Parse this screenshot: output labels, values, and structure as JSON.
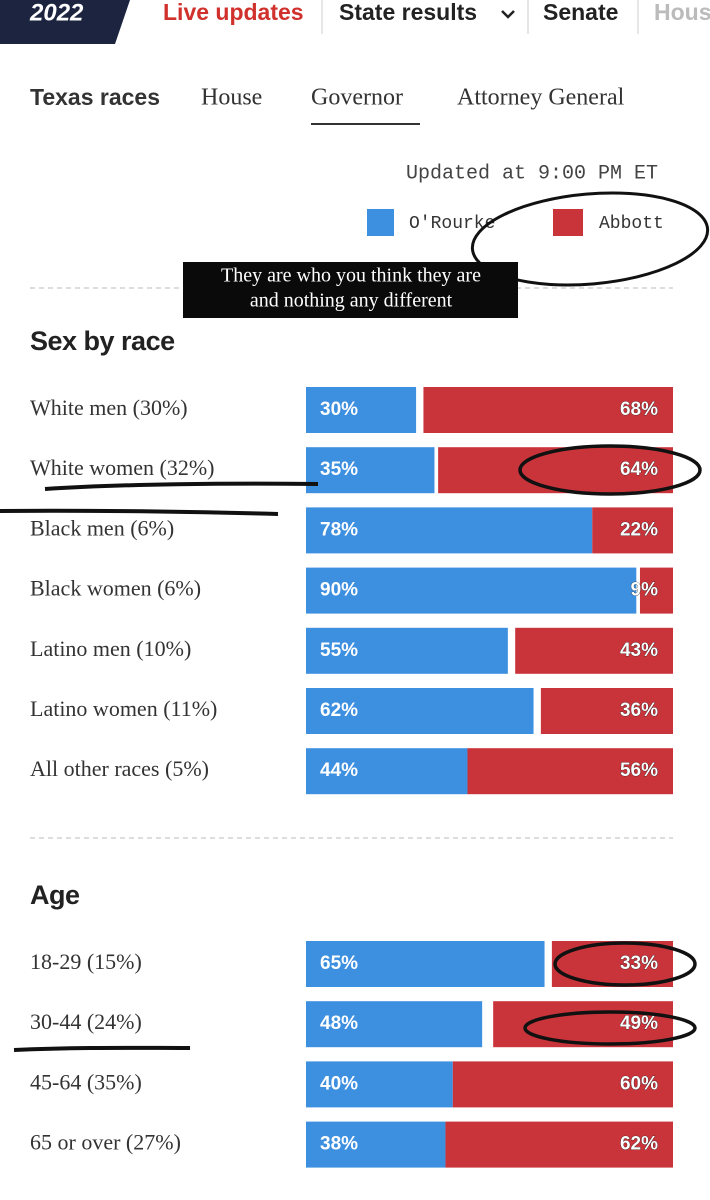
{
  "nav": {
    "logo": "2022",
    "items": [
      "Live updates",
      "State results",
      "Senate",
      "House"
    ]
  },
  "tabs": [
    "Texas races",
    "House",
    "Governor",
    "Attorney General"
  ],
  "updated": "Updated at 9:00 PM ET",
  "annotation": [
    "They are who you think they are",
    "and nothing any different"
  ],
  "chart_data": [
    {
      "type": "bar",
      "stacked": true,
      "title": "Sex by race",
      "categories": [
        "White men (30%)",
        "White women (32%)",
        "Black men (6%)",
        "Black women (6%)",
        "Latino men (10%)",
        "Latino women (11%)",
        "All other races (5%)"
      ],
      "xlim": [
        0,
        100
      ],
      "series": [
        {
          "name": "O'Rourke",
          "color": "#3d8fe0",
          "values": [
            30,
            35,
            78,
            90,
            55,
            62,
            44
          ],
          "value_labels": [
            "30%",
            "35%",
            "78%",
            "90%",
            "55%",
            "62%",
            "44%"
          ]
        },
        {
          "name": "Abbott",
          "color": "#c9343b",
          "values": [
            68,
            64,
            22,
            9,
            43,
            36,
            56
          ],
          "value_labels": [
            "68%",
            "64%",
            "22%",
            "9%",
            "43%",
            "36%",
            "56%"
          ]
        }
      ]
    },
    {
      "type": "bar",
      "stacked": true,
      "title": "Age",
      "categories": [
        "18-29 (15%)",
        "30-44 (24%)",
        "45-64 (35%)",
        "65 or over (27%)"
      ],
      "xlim": [
        0,
        100
      ],
      "series": [
        {
          "name": "O'Rourke",
          "color": "#3d8fe0",
          "values": [
            65,
            48,
            40,
            38
          ],
          "value_labels": [
            "65%",
            "48%",
            "40%",
            "38%"
          ]
        },
        {
          "name": "Abbott",
          "color": "#c9343b",
          "values": [
            33,
            49,
            60,
            62
          ],
          "value_labels": [
            "33%",
            "49%",
            "60%",
            "62%"
          ]
        }
      ]
    }
  ]
}
